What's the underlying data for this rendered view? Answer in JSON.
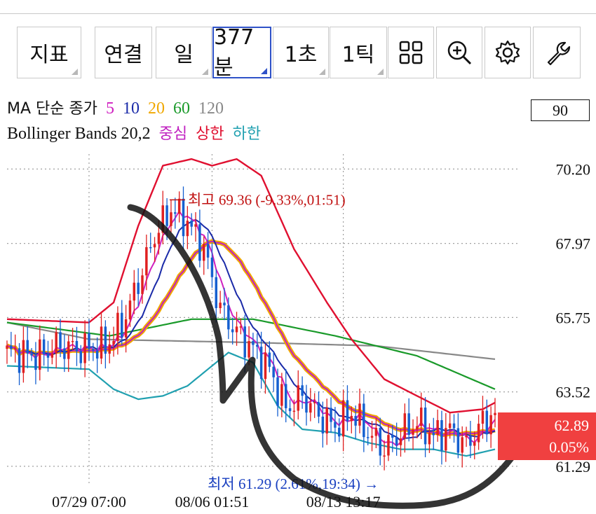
{
  "toolbar": {
    "indicator_label": "지표",
    "link_label": "연결",
    "day_label": "일",
    "minute_label": "377분",
    "second_label": "1초",
    "tick_label": "1틱",
    "icons": [
      "grid-icon",
      "zoom-in-icon",
      "gear-icon",
      "wrench-icon"
    ]
  },
  "legend": {
    "ma": {
      "label": "MA 단순 종가",
      "periods": [
        "5",
        "10",
        "20",
        "60",
        "120"
      ],
      "colors": [
        "#d020c0",
        "#1a2aa8",
        "#f0a800",
        "#1a9a2a",
        "#888888"
      ]
    },
    "bb": {
      "label": "Bollinger Bands 20,2",
      "center": "중심",
      "upper": "상한",
      "lower": "하한",
      "colors": [
        "#c020c0",
        "#e01030",
        "#20a0b0"
      ]
    }
  },
  "right_box": "90",
  "price_badge": {
    "price": "62.89",
    "change": "0.05%"
  },
  "chart_data": {
    "type": "candlestick",
    "y_ticks": [
      "70.20",
      "67.97",
      "65.75",
      "63.52",
      "61.29"
    ],
    "y_tick_values": [
      70.2,
      67.97,
      65.75,
      63.52,
      61.29
    ],
    "ylim": [
      60.7,
      70.9
    ],
    "x_labels": [
      "07/29 07:00",
      "08/06 01:51",
      "08/13 13:17"
    ],
    "x_label_index": [
      20,
      50,
      82
    ],
    "n_bars": 120,
    "high_annotation": "최고 69.36 (-9.33%,01:51)",
    "high": {
      "index": 40,
      "value": 69.36
    },
    "low_annotation": "최저 61.29 (2.61%,19:34) →",
    "low": {
      "index": 92,
      "value": 61.29
    },
    "last_price": 62.89,
    "close_path": [
      [
        0,
        64.7
      ],
      [
        8,
        64.6
      ],
      [
        12,
        64.9
      ],
      [
        18,
        64.8
      ],
      [
        24,
        64.9
      ],
      [
        28,
        65.5
      ],
      [
        32,
        66.8
      ],
      [
        36,
        68.2
      ],
      [
        40,
        69.0
      ],
      [
        44,
        68.6
      ],
      [
        48,
        67.8
      ],
      [
        52,
        66.0
      ],
      [
        56,
        65.3
      ],
      [
        60,
        64.8
      ],
      [
        64,
        64.2
      ],
      [
        68,
        63.0
      ],
      [
        72,
        63.4
      ],
      [
        76,
        62.8
      ],
      [
        80,
        62.5
      ],
      [
        84,
        62.9
      ],
      [
        88,
        62.3
      ],
      [
        92,
        61.8
      ],
      [
        96,
        62.3
      ],
      [
        100,
        62.6
      ],
      [
        104,
        62.2
      ],
      [
        108,
        62.4
      ],
      [
        112,
        61.9
      ],
      [
        116,
        62.6
      ],
      [
        119,
        62.89
      ]
    ],
    "ma120": [
      [
        0,
        65.6
      ],
      [
        20,
        65.1
      ],
      [
        60,
        65.0
      ],
      [
        90,
        64.9
      ],
      [
        119,
        64.5
      ]
    ],
    "ma60": [
      [
        0,
        65.6
      ],
      [
        25,
        65.2
      ],
      [
        45,
        65.7
      ],
      [
        60,
        65.7
      ],
      [
        80,
        65.2
      ],
      [
        100,
        64.6
      ],
      [
        119,
        63.6
      ]
    ],
    "bb_upper": [
      [
        0,
        65.7
      ],
      [
        20,
        65.6
      ],
      [
        26,
        66.2
      ],
      [
        32,
        68.5
      ],
      [
        38,
        70.3
      ],
      [
        45,
        70.5
      ],
      [
        50,
        70.3
      ],
      [
        56,
        70.5
      ],
      [
        62,
        70.0
      ],
      [
        70,
        67.8
      ],
      [
        78,
        66.2
      ],
      [
        84,
        65.1
      ],
      [
        92,
        63.9
      ],
      [
        100,
        63.4
      ],
      [
        108,
        62.9
      ],
      [
        116,
        63.0
      ],
      [
        119,
        63.2
      ]
    ],
    "bb_lower": [
      [
        0,
        64.3
      ],
      [
        20,
        64.2
      ],
      [
        26,
        63.6
      ],
      [
        32,
        63.3
      ],
      [
        38,
        63.4
      ],
      [
        44,
        63.7
      ],
      [
        50,
        64.3
      ],
      [
        54,
        64.7
      ],
      [
        60,
        64.4
      ],
      [
        66,
        63.1
      ],
      [
        72,
        62.4
      ],
      [
        80,
        62.3
      ],
      [
        88,
        62.0
      ],
      [
        96,
        61.8
      ],
      [
        104,
        61.8
      ],
      [
        112,
        61.6
      ],
      [
        119,
        61.8
      ]
    ]
  }
}
